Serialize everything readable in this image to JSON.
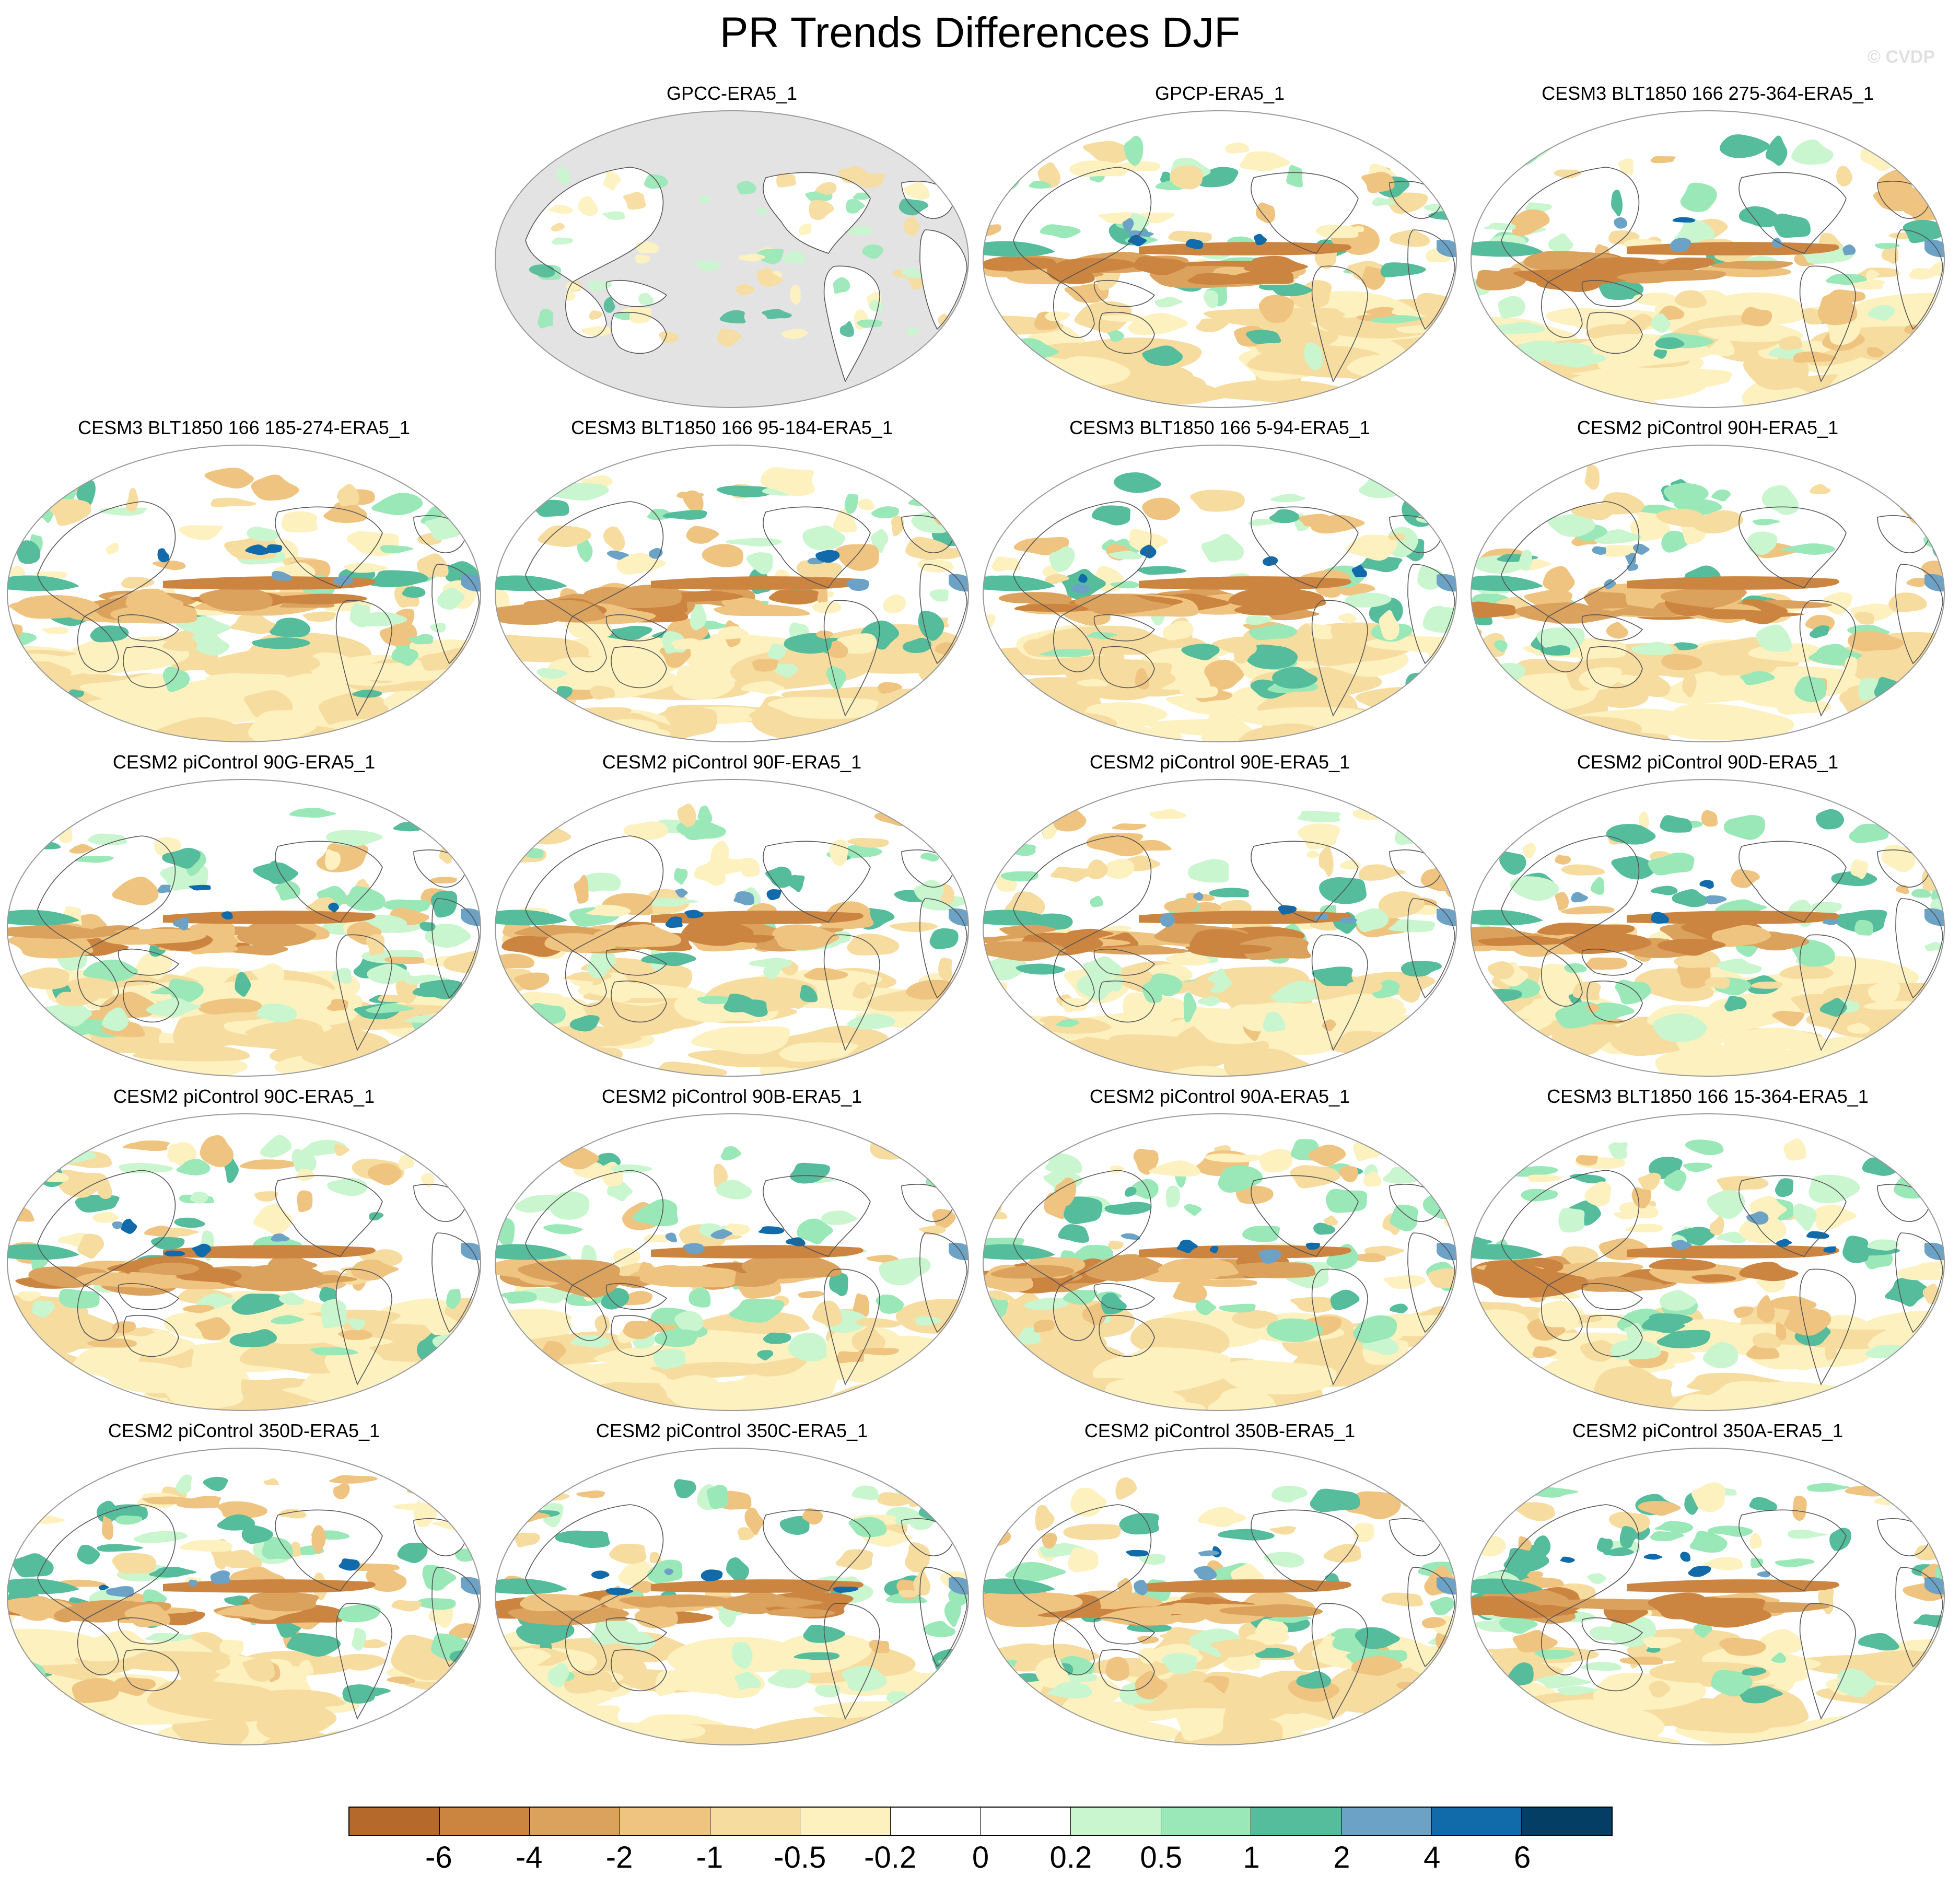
{
  "title": "PR Trends Differences DJF",
  "watermark": "© CVDP",
  "panels": [
    {
      "title": "GPCC-ERA5_1",
      "land_only": true
    },
    {
      "title": "GPCP-ERA5_1",
      "land_only": false
    },
    {
      "title": "CESM3 BLT1850 166 275-364-ERA5_1",
      "land_only": false
    },
    {
      "title": "CESM3 BLT1850 166 185-274-ERA5_1",
      "land_only": false
    },
    {
      "title": "CESM3 BLT1850 166 95-184-ERA5_1",
      "land_only": false
    },
    {
      "title": "CESM3 BLT1850 166 5-94-ERA5_1",
      "land_only": false
    },
    {
      "title": "CESM2 piControl 90H-ERA5_1",
      "land_only": false
    },
    {
      "title": "CESM2 piControl 90G-ERA5_1",
      "land_only": false
    },
    {
      "title": "CESM2 piControl 90F-ERA5_1",
      "land_only": false
    },
    {
      "title": "CESM2 piControl 90E-ERA5_1",
      "land_only": false
    },
    {
      "title": "CESM2 piControl 90D-ERA5_1",
      "land_only": false
    },
    {
      "title": "CESM2 piControl 90C-ERA5_1",
      "land_only": false
    },
    {
      "title": "CESM2 piControl 90B-ERA5_1",
      "land_only": false
    },
    {
      "title": "CESM2 piControl 90A-ERA5_1",
      "land_only": false
    },
    {
      "title": "CESM3 BLT1850 166 15-364-ERA5_1",
      "land_only": false
    },
    {
      "title": "CESM2 piControl 350D-ERA5_1",
      "land_only": false
    },
    {
      "title": "CESM2 piControl 350C-ERA5_1",
      "land_only": false
    },
    {
      "title": "CESM2 piControl 350B-ERA5_1",
      "land_only": false
    },
    {
      "title": "CESM2 piControl 350A-ERA5_1",
      "land_only": false
    }
  ],
  "colorbar": {
    "ticks": [
      "-6",
      "-4",
      "-2",
      "-1",
      "-0.5",
      "-0.2",
      "0",
      "0.2",
      "0.5",
      "1",
      "2",
      "4",
      "6"
    ],
    "colors": [
      "#b5692a",
      "#cc8540",
      "#dba25e",
      "#efc480",
      "#f7dca0",
      "#fdf1bf",
      "#ffffff",
      "#ffffff",
      "#c9f6cf",
      "#9ae8b8",
      "#55bc9c",
      "#6ba2c6",
      "#116aa9",
      "#053e64"
    ]
  },
  "colors": {
    "land_mask": "#e3e3e3",
    "coastline": "#555555"
  }
}
